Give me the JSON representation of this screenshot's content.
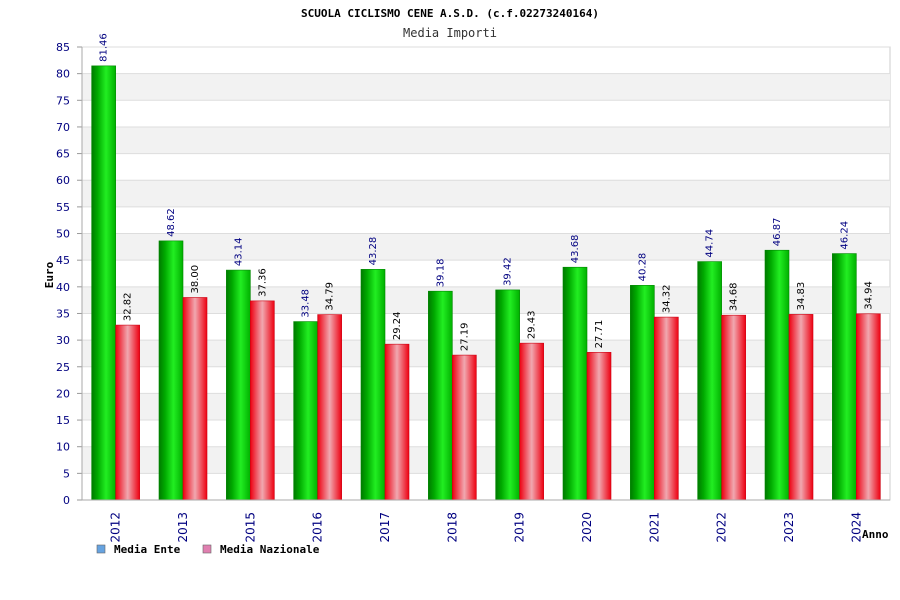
{
  "chart_data": {
    "type": "bar",
    "title": "SCUOLA CICLISMO CENE A.S.D. (c.f.02273240164)",
    "subtitle": "Media Importi",
    "ylabel": "Euro",
    "xlabel": "Anno",
    "ylim": [
      0,
      85
    ],
    "ystep": 5,
    "grid": true,
    "categories": [
      "2012",
      "2013",
      "2015",
      "2016",
      "2017",
      "2018",
      "2019",
      "2020",
      "2021",
      "2022",
      "2023",
      "2024"
    ],
    "series": [
      {
        "name": "Media Ente",
        "values": [
          81.46,
          48.62,
          43.14,
          33.48,
          43.28,
          39.18,
          39.42,
          43.68,
          40.28,
          44.74,
          46.87,
          46.24
        ],
        "color": "#00cc00",
        "legend_color": "#66a3e0"
      },
      {
        "name": "Media Nazionale",
        "values": [
          32.82,
          38.0,
          37.36,
          34.79,
          29.24,
          27.19,
          29.43,
          27.71,
          34.32,
          34.68,
          34.83,
          34.94
        ],
        "color": "#ee1122",
        "legend_color": "#e07fb0"
      }
    ],
    "legend_position": "bottom-left"
  }
}
